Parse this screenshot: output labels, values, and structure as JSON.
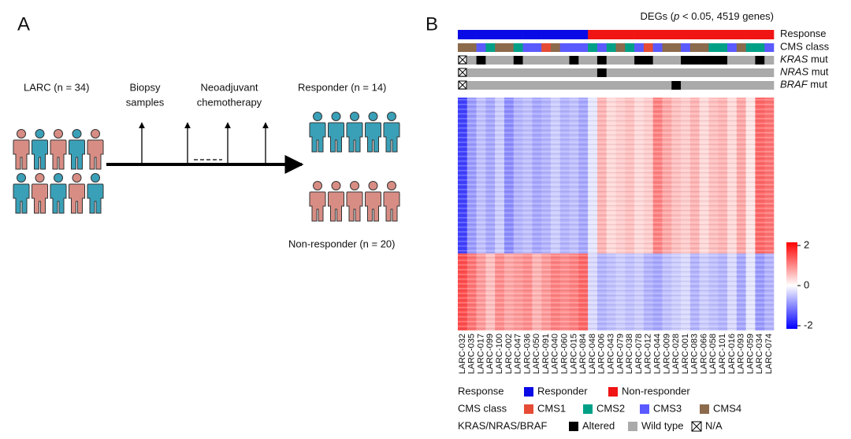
{
  "panel_a": {
    "label": "A",
    "cohort": "LARC (n = 34)",
    "biopsy": [
      "Biopsy",
      "samples"
    ],
    "chemo": [
      "Neoadjuvant",
      "chemotherapy"
    ],
    "responder": "Responder (n = 14)",
    "non_responder": "Non-responder (n = 20)"
  },
  "chart_data": {
    "type": "heatmap",
    "panel_label": "B",
    "title": [
      "DEGs (",
      "p",
      " < 0.05, 4519 genes)"
    ],
    "samples": [
      "LARC-032",
      "LARC-035",
      "LARC-017",
      "LARC-099",
      "LARC-100",
      "LARC-002",
      "LARC-047",
      "LARC-036",
      "LARC-050",
      "LARC-091",
      "LARC-040",
      "LARC-060",
      "LARC-015",
      "LARC-084",
      "LARC-048",
      "LARC-006",
      "LARC-043",
      "LARC-079",
      "LARC-038",
      "LARC-078",
      "LARC-012",
      "LARC-044",
      "LARC-009",
      "LARC-028",
      "LARC-001",
      "LARC-083",
      "LARC-066",
      "LARC-058",
      "LARC-101",
      "LARC-016",
      "LARC-093",
      "LARC-059",
      "LARC-034",
      "LARC-074"
    ],
    "annotations": [
      {
        "name": [
          "Response"
        ],
        "values": [
          "Responder",
          "Responder",
          "Responder",
          "Responder",
          "Responder",
          "Responder",
          "Responder",
          "Responder",
          "Responder",
          "Responder",
          "Responder",
          "Responder",
          "Responder",
          "Responder",
          "Non-responder",
          "Non-responder",
          "Non-responder",
          "Non-responder",
          "Non-responder",
          "Non-responder",
          "Non-responder",
          "Non-responder",
          "Non-responder",
          "Non-responder",
          "Non-responder",
          "Non-responder",
          "Non-responder",
          "Non-responder",
          "Non-responder",
          "Non-responder",
          "Non-responder",
          "Non-responder",
          "Non-responder",
          "Non-responder"
        ]
      },
      {
        "name": [
          "CMS class"
        ],
        "values": [
          "CMS4",
          "CMS4",
          "CMS3",
          "CMS2",
          "CMS4",
          "CMS4",
          "CMS2",
          "CMS3",
          "CMS3",
          "CMS1",
          "CMS4",
          "CMS3",
          "CMS3",
          "CMS3",
          "CMS2",
          "CMS3",
          "CMS2",
          "CMS4",
          "CMS2",
          "CMS3",
          "CMS1",
          "CMS3",
          "CMS4",
          "CMS4",
          "CMS3",
          "CMS4",
          "CMS4",
          "CMS2",
          "CMS2",
          "CMS3",
          "CMS4",
          "CMS2",
          "CMS2",
          "CMS3"
        ]
      },
      {
        "name": [
          "KRAS",
          " mut"
        ],
        "values": [
          "N/A",
          "Wild type",
          "Altered",
          "Wild type",
          "Wild type",
          "Wild type",
          "Altered",
          "Wild type",
          "Wild type",
          "Wild type",
          "Wild type",
          "Wild type",
          "Altered",
          "Wild type",
          "Wild type",
          "Altered",
          "Wild type",
          "Wild type",
          "Wild type",
          "Altered",
          "Altered",
          "Wild type",
          "Wild type",
          "Wild type",
          "Altered",
          "Altered",
          "Altered",
          "Altered",
          "Altered",
          "Wild type",
          "Wild type",
          "Wild type",
          "Altered",
          "Wild type"
        ]
      },
      {
        "name": [
          "NRAS",
          " mut"
        ],
        "values": [
          "N/A",
          "Wild type",
          "Wild type",
          "Wild type",
          "Wild type",
          "Wild type",
          "Wild type",
          "Wild type",
          "Wild type",
          "Wild type",
          "Wild type",
          "Wild type",
          "Wild type",
          "Wild type",
          "Wild type",
          "Altered",
          "Wild type",
          "Wild type",
          "Wild type",
          "Wild type",
          "Wild type",
          "Wild type",
          "Wild type",
          "Wild type",
          "Wild type",
          "Wild type",
          "Wild type",
          "Wild type",
          "Wild type",
          "Wild type",
          "Wild type",
          "Wild type",
          "Wild type",
          "Wild type"
        ]
      },
      {
        "name": [
          "BRAF",
          " mut"
        ],
        "values": [
          "N/A",
          "Wild type",
          "Wild type",
          "Wild type",
          "Wild type",
          "Wild type",
          "Wild type",
          "Wild type",
          "Wild type",
          "Wild type",
          "Wild type",
          "Wild type",
          "Wild type",
          "Wild type",
          "Wild type",
          "Wild type",
          "Wild type",
          "Wild type",
          "Wild type",
          "Wild type",
          "Wild type",
          "Wild type",
          "Wild type",
          "Altered",
          "Wild type",
          "Wild type",
          "Wild type",
          "Wild type",
          "Wild type",
          "Wild type",
          "Wild type",
          "Wild type",
          "Wild type",
          "Wild type"
        ]
      }
    ],
    "values": [
      [
        -1.5,
        -0.8,
        -0.5,
        -0.7,
        -0.4,
        -0.9,
        -0.6,
        -0.5,
        -0.7,
        -0.6,
        -0.4,
        -0.6,
        -0.5,
        -0.7,
        -0.2,
        0.6,
        0.3,
        0.4,
        0.5,
        0.3,
        0.4,
        1.0,
        0.7,
        0.5,
        0.4,
        0.6,
        0.3,
        0.5,
        0.6,
        0.3,
        0.7,
        0.2,
        1.2,
        1.1
      ],
      [
        1.4,
        1.1,
        0.8,
        0.5,
        0.9,
        0.7,
        0.8,
        0.9,
        0.6,
        0.8,
        1.0,
        0.9,
        1.0,
        1.2,
        -0.3,
        -0.6,
        -0.5,
        -0.4,
        -0.5,
        -0.4,
        -0.6,
        -0.7,
        -0.5,
        -0.4,
        -0.3,
        -0.6,
        -0.4,
        -0.5,
        -0.6,
        -0.3,
        -0.7,
        -0.2,
        -0.8,
        -0.6
      ]
    ],
    "colorbar": {
      "colors": [
        "#0000ff",
        "#ffffff",
        "#ff0000"
      ],
      "lim": [
        -2,
        2
      ],
      "ticks": [
        2,
        0,
        -2
      ]
    },
    "legend": [
      {
        "title": "Response",
        "items": [
          {
            "label": "Responder",
            "color": "#0a0ae6"
          },
          {
            "label": "Non-responder",
            "color": "#f01414"
          }
        ]
      },
      {
        "title": "CMS class",
        "items": [
          {
            "label": "CMS1",
            "color": "#e64b35"
          },
          {
            "label": "CMS2",
            "color": "#00a087"
          },
          {
            "label": "CMS3",
            "color": "#5a5aff"
          },
          {
            "label": "CMS4",
            "color": "#8c6a4c"
          }
        ]
      },
      {
        "title": "KRAS/NRAS/BRAF",
        "items": [
          {
            "label": "Altered",
            "color": "#000000"
          },
          {
            "label": "Wild type",
            "color": "#aaaaaa"
          },
          {
            "label": "N/A",
            "color": "#ffffff",
            "marker": "cross"
          }
        ]
      }
    ]
  }
}
